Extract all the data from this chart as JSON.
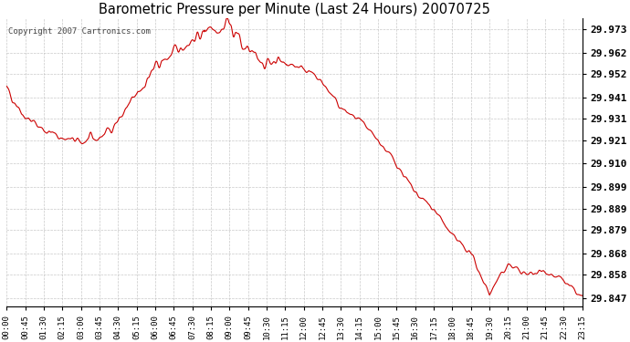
{
  "title": "Barometric Pressure per Minute (Last 24 Hours) 20070725",
  "copyright_text": "Copyright 2007 Cartronics.com",
  "line_color": "#cc0000",
  "background_color": "#ffffff",
  "plot_bg_color": "#ffffff",
  "grid_color": "#bbbbbb",
  "ytick_labels": [
    29.973,
    29.962,
    29.952,
    29.941,
    29.931,
    29.921,
    29.91,
    29.899,
    29.889,
    29.879,
    29.868,
    29.858,
    29.847
  ],
  "ylim": [
    29.843,
    29.978
  ],
  "xtick_labels": [
    "00:00",
    "00:45",
    "01:30",
    "02:15",
    "03:00",
    "03:45",
    "04:30",
    "05:15",
    "06:00",
    "06:45",
    "07:30",
    "08:15",
    "09:00",
    "09:45",
    "10:30",
    "11:15",
    "12:00",
    "12:45",
    "13:30",
    "14:15",
    "15:00",
    "15:45",
    "16:30",
    "17:15",
    "18:00",
    "18:45",
    "19:30",
    "20:15",
    "21:00",
    "21:45",
    "22:30",
    "23:15"
  ],
  "pressure_data_by_xtick": [
    29.945,
    29.932,
    29.926,
    29.922,
    29.92,
    29.922,
    29.93,
    29.942,
    29.955,
    29.962,
    29.968,
    29.973,
    29.974,
    29.963,
    29.958,
    29.957,
    29.955,
    29.948,
    29.936,
    29.93,
    29.921,
    29.91,
    29.896,
    29.889,
    29.876,
    29.868,
    29.849,
    29.863,
    29.858,
    29.86,
    29.855,
    29.847
  ]
}
